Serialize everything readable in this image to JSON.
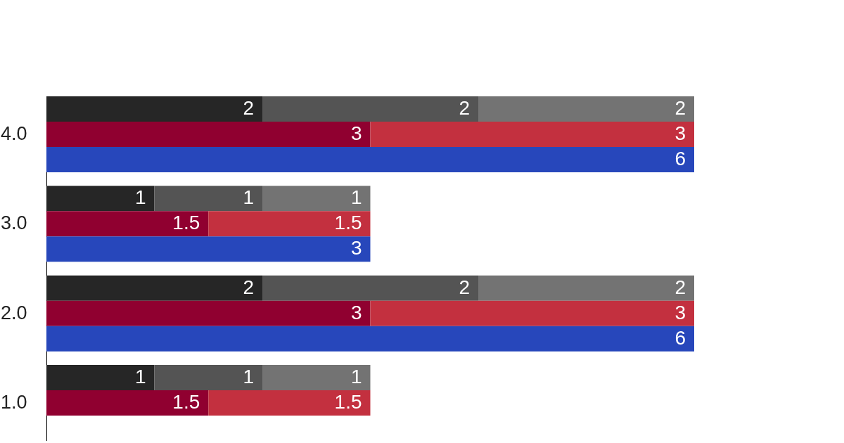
{
  "chart_data": {
    "type": "bar",
    "orientation": "horizontal",
    "stacked": true,
    "data_labels": true,
    "legend": false,
    "grid": false,
    "categories": [
      null,
      "4.0",
      null,
      null,
      "3.0",
      null,
      null,
      "2.0",
      null,
      null,
      "1.0"
    ],
    "series": [
      {
        "color": "#262626",
        "values": [
          2,
          null,
          null,
          1,
          null,
          null,
          2,
          null,
          null,
          1,
          null
        ]
      },
      {
        "color": "#545454",
        "values": [
          2,
          null,
          null,
          1,
          null,
          null,
          2,
          null,
          null,
          1,
          null
        ]
      },
      {
        "color": "#737373",
        "values": [
          2,
          null,
          null,
          1,
          null,
          null,
          2,
          null,
          null,
          1,
          null
        ]
      },
      {
        "color": "#900030",
        "values": [
          null,
          3,
          null,
          null,
          1.5,
          null,
          null,
          3,
          null,
          null,
          1.5
        ]
      },
      {
        "color": "#c3303f",
        "values": [
          null,
          3,
          null,
          null,
          1.5,
          null,
          null,
          3,
          null,
          null,
          1.5
        ]
      },
      {
        "color": "#2747bb",
        "values": [
          null,
          null,
          6,
          null,
          null,
          3,
          null,
          null,
          6,
          null,
          null
        ]
      }
    ]
  }
}
